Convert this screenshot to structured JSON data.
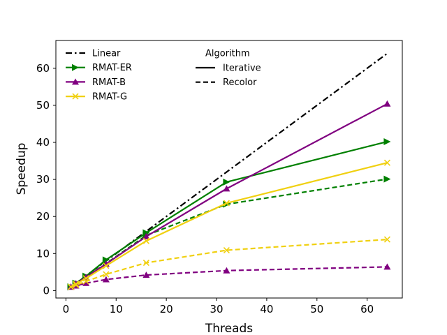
{
  "chart_data": {
    "type": "line",
    "title": "",
    "xlabel": "Threads",
    "ylabel": "Speedup",
    "xlim": [
      -2,
      67
    ],
    "ylim": [
      -2,
      67.5
    ],
    "xticks": [
      0,
      10,
      20,
      30,
      40,
      50,
      60
    ],
    "yticks": [
      0,
      10,
      20,
      30,
      40,
      50,
      60
    ],
    "grid": false,
    "x": [
      1,
      2,
      4,
      8,
      16,
      32,
      64
    ],
    "series": [
      {
        "name": "Linear",
        "color": "#000000",
        "style": "dashdot",
        "marker": "none",
        "values": [
          1,
          2,
          4,
          8,
          16,
          32,
          64
        ]
      },
      {
        "name": "RMAT-ER",
        "algorithm": "Iterative",
        "color": "#008000",
        "style": "solid",
        "marker": "triangle-right",
        "values": [
          1.0,
          2.0,
          3.9,
          8.3,
          15.6,
          29.3,
          40.2
        ]
      },
      {
        "name": "RMAT-ER",
        "algorithm": "Recolor",
        "color": "#008000",
        "style": "dashed",
        "marker": "triangle-right",
        "values": [
          1.0,
          1.9,
          3.6,
          7.3,
          14.9,
          23.3,
          30.1
        ]
      },
      {
        "name": "RMAT-B",
        "algorithm": "Iterative",
        "color": "#800080",
        "style": "solid",
        "marker": "triangle-up",
        "values": [
          1.0,
          1.9,
          3.6,
          7.2,
          14.6,
          27.5,
          50.4
        ]
      },
      {
        "name": "RMAT-B",
        "algorithm": "Recolor",
        "color": "#800080",
        "style": "dashed",
        "marker": "triangle-up",
        "values": [
          1.0,
          1.3,
          2.0,
          3.0,
          4.2,
          5.4,
          6.4
        ]
      },
      {
        "name": "RMAT-G",
        "algorithm": "Iterative",
        "color": "#f0d010",
        "style": "solid",
        "marker": "x",
        "values": [
          1.0,
          1.8,
          3.3,
          6.7,
          13.4,
          23.6,
          34.5
        ]
      },
      {
        "name": "RMAT-G",
        "algorithm": "Recolor",
        "color": "#f0d010",
        "style": "dashed",
        "marker": "x",
        "values": [
          1.0,
          1.5,
          2.5,
          4.4,
          7.5,
          10.9,
          13.8
        ]
      }
    ],
    "legend": {
      "placement": "top-left",
      "datasets": [
        {
          "label": "Linear",
          "color": "#000000",
          "style": "dashdot",
          "marker": "none"
        },
        {
          "label": "RMAT-ER",
          "color": "#008000",
          "style": "solid",
          "marker": "triangle-right"
        },
        {
          "label": "RMAT-B",
          "color": "#800080",
          "style": "solid",
          "marker": "triangle-up"
        },
        {
          "label": "RMAT-G",
          "color": "#f0d010",
          "style": "solid",
          "marker": "x"
        }
      ],
      "algorithm_title": "Algorithm",
      "algorithms": [
        {
          "label": "Iterative",
          "style": "solid"
        },
        {
          "label": "Recolor",
          "style": "dashed"
        }
      ]
    }
  }
}
